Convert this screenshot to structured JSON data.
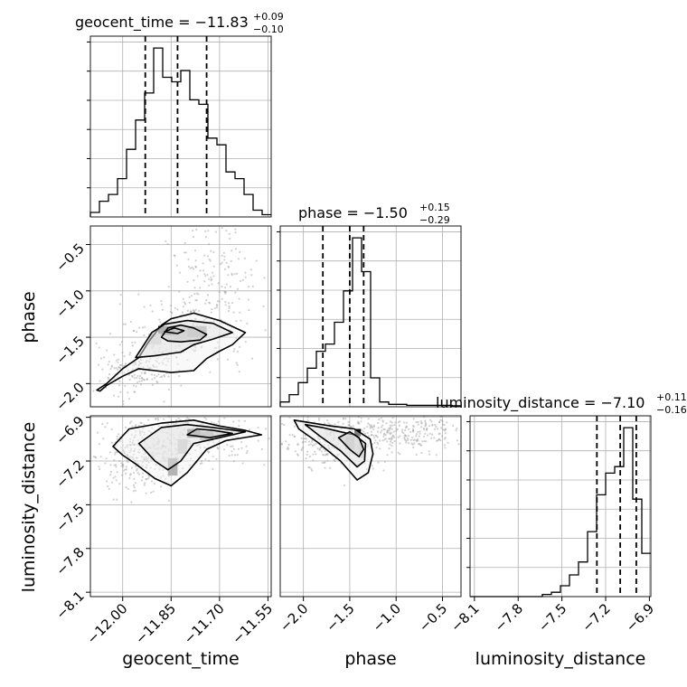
{
  "chart_data": {
    "type": "corner",
    "grid": true,
    "parameters": [
      {
        "name": "geocent_time",
        "range": [
          -12.1,
          -11.54
        ],
        "ticks": [
          "−12.00",
          "−11.85",
          "−11.70",
          "−11.55"
        ],
        "tick_values": [
          -12.0,
          -11.85,
          -11.7,
          -11.55
        ]
      },
      {
        "name": "phase",
        "range": [
          -2.25,
          -0.3
        ],
        "ticks": [
          "−2.0",
          "−1.5",
          "−1.0",
          "−0.5"
        ],
        "tick_values": [
          -2.0,
          -1.5,
          -1.0,
          -0.5
        ],
        "y_ticks": [
          "−2.0",
          "−1.5",
          "−1.0",
          "−0.5"
        ]
      },
      {
        "name": "luminosity_distance",
        "range": [
          -8.13,
          -6.89
        ],
        "ticks": [
          "−8.1",
          "−7.8",
          "−7.5",
          "−7.2",
          "−6.9"
        ],
        "tick_values": [
          -8.1,
          -7.8,
          -7.5,
          -7.2,
          -6.9
        ],
        "y_ticks": [
          "−8.1",
          "−7.8",
          "−7.5",
          "−7.2",
          "−6.9"
        ]
      }
    ],
    "titles": [
      {
        "name": "geocent_time",
        "prefix": "geocent_time = −11.83",
        "upper": "+0.09",
        "lower": "−0.10",
        "median": -11.83,
        "q16": -11.93,
        "q84": -11.74
      },
      {
        "name": "phase",
        "prefix": "phase = −1.50",
        "upper": "+0.15",
        "lower": "−0.29",
        "median": -1.5,
        "q16": -1.79,
        "q84": -1.35
      },
      {
        "name": "luminosity_distance",
        "prefix": "luminosity_distance = −7.10",
        "upper": "+0.11",
        "lower": "−0.16",
        "median": -7.1,
        "q16": -7.26,
        "q84": -6.99
      }
    ],
    "histograms": [
      {
        "name": "geocent_time",
        "edges": [
          -12.1,
          -12.072,
          -12.044,
          -12.016,
          -11.988,
          -11.96,
          -11.932,
          -11.904,
          -11.876,
          -11.848,
          -11.82,
          -11.792,
          -11.764,
          -11.736,
          -11.708,
          -11.68,
          -11.652,
          -11.624,
          -11.596,
          -11.568,
          -11.54
        ],
        "counts": [
          2,
          7,
          10,
          17,
          30,
          43,
          55,
          75,
          62,
          60,
          65,
          52,
          50,
          35,
          32,
          20,
          17,
          10,
          3,
          1
        ]
      },
      {
        "name": "phase",
        "edges": [
          -2.25,
          -2.1525,
          -2.055,
          -1.9575,
          -1.86,
          -1.7625,
          -1.665,
          -1.5675,
          -1.47,
          -1.3725,
          -1.275,
          -1.1775,
          -1.08,
          -0.9825,
          -0.885,
          -0.7875,
          -0.69,
          -0.5925,
          -0.495,
          -0.3975,
          -0.3
        ],
        "counts": [
          2,
          5,
          10,
          16,
          23,
          26,
          35,
          48,
          70,
          56,
          12,
          2,
          1,
          1,
          0.6,
          0.6,
          0.6,
          0.6,
          0.6,
          0.4
        ]
      },
      {
        "name": "luminosity_distance",
        "edges": [
          -8.13,
          -8.068,
          -8.006,
          -7.944,
          -7.882,
          -7.82,
          -7.758,
          -7.696,
          -7.634,
          -7.572,
          -7.51,
          -7.448,
          -7.386,
          -7.324,
          -7.262,
          -7.2,
          -7.138,
          -7.076,
          -7.014,
          -6.952,
          -6.89
        ],
        "counts": [
          0,
          0,
          0,
          0,
          0,
          0,
          0,
          0,
          1,
          2,
          5,
          10,
          16,
          30,
          47,
          57,
          60,
          78,
          45,
          20
        ]
      }
    ],
    "contours": [
      {
        "x": "geocent_time",
        "y": "phase",
        "levels": [
          {
            "points": [
              [
                -12.08,
                -2.07
              ],
              [
                -12.05,
                -2.0
              ],
              [
                -12.0,
                -1.84
              ],
              [
                -11.95,
                -1.72
              ],
              [
                -11.92,
                -1.55
              ],
              [
                -11.88,
                -1.37
              ],
              [
                -11.85,
                -1.3
              ],
              [
                -11.78,
                -1.24
              ],
              [
                -11.7,
                -1.32
              ],
              [
                -11.62,
                -1.45
              ],
              [
                -11.66,
                -1.58
              ],
              [
                -11.7,
                -1.65
              ],
              [
                -11.74,
                -1.73
              ],
              [
                -11.78,
                -1.86
              ],
              [
                -11.85,
                -1.88
              ],
              [
                -11.9,
                -1.86
              ],
              [
                -11.95,
                -1.84
              ],
              [
                -12.0,
                -1.92
              ],
              [
                -12.05,
                -2.02
              ],
              [
                -12.07,
                -2.08
              ]
            ]
          },
          {
            "points": [
              [
                -11.96,
                -1.72
              ],
              [
                -11.91,
                -1.45
              ],
              [
                -11.87,
                -1.36
              ],
              [
                -11.8,
                -1.32
              ],
              [
                -11.72,
                -1.35
              ],
              [
                -11.66,
                -1.45
              ],
              [
                -11.72,
                -1.52
              ],
              [
                -11.78,
                -1.58
              ],
              [
                -11.82,
                -1.66
              ],
              [
                -11.9,
                -1.7
              ]
            ]
          },
          {
            "points": [
              [
                -11.88,
                -1.5
              ],
              [
                -11.86,
                -1.4
              ],
              [
                -11.82,
                -1.37
              ],
              [
                -11.78,
                -1.4
              ],
              [
                -11.74,
                -1.47
              ],
              [
                -11.76,
                -1.53
              ],
              [
                -11.82,
                -1.55
              ],
              [
                -11.86,
                -1.54
              ]
            ]
          },
          {
            "points": [
              [
                -11.87,
                -1.44
              ],
              [
                -11.84,
                -1.4
              ],
              [
                -11.81,
                -1.43
              ],
              [
                -11.83,
                -1.46
              ]
            ]
          }
        ]
      },
      {
        "x": "geocent_time",
        "y": "luminosity_distance",
        "levels": [
          {
            "points": [
              [
                -12.03,
                -7.1
              ],
              [
                -11.98,
                -6.98
              ],
              [
                -11.88,
                -6.94
              ],
              [
                -11.78,
                -6.92
              ],
              [
                -11.7,
                -6.96
              ],
              [
                -11.62,
                -6.99
              ],
              [
                -11.57,
                -7.02
              ],
              [
                -11.68,
                -7.06
              ],
              [
                -11.74,
                -7.12
              ],
              [
                -11.8,
                -7.28
              ],
              [
                -11.85,
                -7.37
              ],
              [
                -11.9,
                -7.32
              ],
              [
                -11.96,
                -7.22
              ],
              [
                -12.0,
                -7.16
              ]
            ]
          },
          {
            "points": [
              [
                -11.95,
                -7.08
              ],
              [
                -11.88,
                -6.97
              ],
              [
                -11.8,
                -6.95
              ],
              [
                -11.72,
                -6.97
              ],
              [
                -11.62,
                -7.0
              ],
              [
                -11.7,
                -7.04
              ],
              [
                -11.78,
                -7.08
              ],
              [
                -11.82,
                -7.2
              ],
              [
                -11.86,
                -7.26
              ],
              [
                -11.9,
                -7.2
              ]
            ]
          },
          {
            "points": [
              [
                -11.8,
                -7.02
              ],
              [
                -11.77,
                -6.98
              ],
              [
                -11.72,
                -6.99
              ],
              [
                -11.66,
                -7.01
              ],
              [
                -11.73,
                -7.04
              ]
            ]
          }
        ]
      },
      {
        "x": "phase",
        "y": "luminosity_distance",
        "levels": [
          {
            "points": [
              [
                -2.1,
                -6.92
              ],
              [
                -1.9,
                -6.94
              ],
              [
                -1.7,
                -6.96
              ],
              [
                -1.45,
                -6.98
              ],
              [
                -1.28,
                -7.05
              ],
              [
                -1.25,
                -7.15
              ],
              [
                -1.3,
                -7.28
              ],
              [
                -1.42,
                -7.33
              ],
              [
                -1.6,
                -7.2
              ],
              [
                -1.85,
                -7.07
              ],
              [
                -2.05,
                -6.98
              ]
            ]
          },
          {
            "points": [
              [
                -1.98,
                -6.95
              ],
              [
                -1.8,
                -6.97
              ],
              [
                -1.6,
                -7.0
              ],
              [
                -1.45,
                -7.02
              ],
              [
                -1.33,
                -7.08
              ],
              [
                -1.34,
                -7.2
              ],
              [
                -1.42,
                -7.24
              ],
              [
                -1.6,
                -7.13
              ],
              [
                -1.82,
                -7.03
              ]
            ]
          },
          {
            "points": [
              [
                -1.62,
                -7.04
              ],
              [
                -1.5,
                -7.0
              ],
              [
                -1.4,
                -7.04
              ],
              [
                -1.35,
                -7.12
              ],
              [
                -1.4,
                -7.17
              ],
              [
                -1.5,
                -7.12
              ]
            ]
          }
        ]
      }
    ],
    "pixels": [
      {
        "x": "geocent_time",
        "y": "phase",
        "cells": [
          {
            "x0": -11.89,
            "x1": -11.84,
            "y0": -1.48,
            "y1": -1.38,
            "shade": 0.95
          },
          {
            "x0": -11.8,
            "x1": -11.74,
            "y0": -1.5,
            "y1": -1.38,
            "shade": 0.55
          },
          {
            "x0": -11.84,
            "x1": -11.8,
            "y0": -1.52,
            "y1": -1.4,
            "shade": 0.3
          },
          {
            "x0": -11.92,
            "x1": -11.88,
            "y0": -1.58,
            "y1": -1.46,
            "shade": 0.25
          }
        ]
      },
      {
        "x": "geocent_time",
        "y": "luminosity_distance",
        "cells": [
          {
            "x0": -11.8,
            "x1": -11.76,
            "y0": -7.04,
            "y1": -6.98,
            "shade": 0.95
          },
          {
            "x0": -11.86,
            "x1": -11.83,
            "y0": -7.3,
            "y1": -7.18,
            "shade": 0.55
          },
          {
            "x0": -11.76,
            "x1": -11.72,
            "y0": -7.06,
            "y1": -7.0,
            "shade": 0.6
          },
          {
            "x0": -11.83,
            "x1": -11.8,
            "y0": -7.15,
            "y1": -7.05,
            "shade": 0.3
          }
        ]
      },
      {
        "x": "phase",
        "y": "luminosity_distance",
        "cells": [
          {
            "x0": -1.45,
            "x1": -1.38,
            "y0": -7.03,
            "y1": -6.98,
            "shade": 0.95
          },
          {
            "x0": -1.55,
            "x1": -1.45,
            "y0": -7.12,
            "y1": -7.03,
            "shade": 0.35
          },
          {
            "x0": -1.4,
            "x1": -1.34,
            "y0": -7.18,
            "y1": -7.08,
            "shade": 0.25
          }
        ]
      }
    ]
  }
}
